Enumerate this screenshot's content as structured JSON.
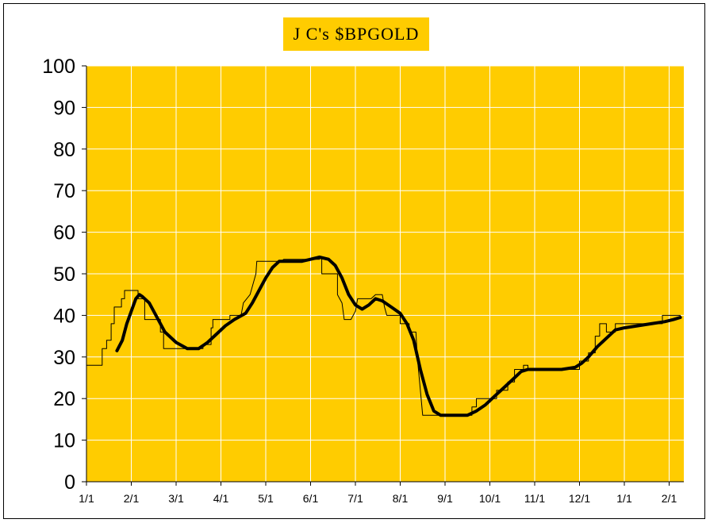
{
  "chart_data": {
    "type": "line",
    "title": "J C's $BPGOLD",
    "xlabel": "",
    "ylabel": "",
    "ylim": [
      0,
      100
    ],
    "yticks": [
      0,
      10,
      20,
      30,
      40,
      50,
      60,
      70,
      80,
      90,
      100
    ],
    "xticks": [
      "1/1",
      "2/1",
      "3/1",
      "4/1",
      "5/1",
      "6/1",
      "7/1",
      "8/1",
      "9/1",
      "10/1",
      "11/1",
      "12/1",
      "1/1",
      "2/1"
    ],
    "grid": true,
    "plot_background": "#ffcc00",
    "frame_background": "#ffffff",
    "series": [
      {
        "style": "thin step",
        "color": "#000000",
        "points": [
          [
            0,
            28
          ],
          [
            0.35,
            28
          ],
          [
            0.35,
            32
          ],
          [
            0.45,
            32
          ],
          [
            0.45,
            34
          ],
          [
            0.55,
            34
          ],
          [
            0.55,
            38
          ],
          [
            0.62,
            38
          ],
          [
            0.62,
            42
          ],
          [
            0.78,
            42
          ],
          [
            0.78,
            44
          ],
          [
            0.85,
            44
          ],
          [
            0.85,
            46
          ],
          [
            1.15,
            46
          ],
          [
            1.15,
            44
          ],
          [
            1.3,
            44
          ],
          [
            1.3,
            39
          ],
          [
            1.65,
            39
          ],
          [
            1.65,
            36
          ],
          [
            1.72,
            36
          ],
          [
            1.72,
            32
          ],
          [
            2.6,
            32
          ],
          [
            2.6,
            33
          ],
          [
            2.78,
            33
          ],
          [
            2.78,
            37
          ],
          [
            2.82,
            37
          ],
          [
            2.82,
            39
          ],
          [
            3.2,
            39
          ],
          [
            3.2,
            40
          ],
          [
            3.45,
            40
          ],
          [
            3.5,
            43
          ],
          [
            3.65,
            45
          ],
          [
            3.78,
            50
          ],
          [
            3.8,
            53
          ],
          [
            4.35,
            53
          ],
          [
            4.4,
            53.5
          ],
          [
            5.2,
            53.5
          ],
          [
            5.2,
            54
          ],
          [
            5.25,
            54
          ],
          [
            5.25,
            50
          ],
          [
            5.6,
            50
          ],
          [
            5.6,
            45
          ],
          [
            5.7,
            43
          ],
          [
            5.75,
            39
          ],
          [
            5.9,
            39
          ],
          [
            6.0,
            41
          ],
          [
            6.05,
            44
          ],
          [
            6.35,
            44
          ],
          [
            6.45,
            45
          ],
          [
            6.6,
            45
          ],
          [
            6.65,
            42
          ],
          [
            6.7,
            40
          ],
          [
            7.0,
            40
          ],
          [
            7.0,
            38
          ],
          [
            7.2,
            38
          ],
          [
            7.2,
            36
          ],
          [
            7.35,
            36
          ],
          [
            7.38,
            30
          ],
          [
            7.45,
            22
          ],
          [
            7.5,
            16
          ],
          [
            8.0,
            16
          ],
          [
            8.0,
            16
          ],
          [
            8.6,
            16
          ],
          [
            8.6,
            18
          ],
          [
            8.7,
            18
          ],
          [
            8.7,
            20
          ],
          [
            9.15,
            20
          ],
          [
            9.15,
            22
          ],
          [
            9.4,
            22
          ],
          [
            9.4,
            24
          ],
          [
            9.55,
            24
          ],
          [
            9.55,
            27
          ],
          [
            9.75,
            27
          ],
          [
            9.75,
            28
          ],
          [
            9.85,
            28
          ],
          [
            9.85,
            27
          ],
          [
            11.0,
            27
          ],
          [
            11.0,
            29
          ],
          [
            11.2,
            29
          ],
          [
            11.2,
            31
          ],
          [
            11.35,
            31
          ],
          [
            11.35,
            35
          ],
          [
            11.45,
            35
          ],
          [
            11.45,
            38
          ],
          [
            11.6,
            38
          ],
          [
            11.6,
            36
          ],
          [
            11.8,
            36
          ],
          [
            11.8,
            38
          ],
          [
            12.0,
            38
          ],
          [
            12.55,
            38
          ],
          [
            12.55,
            38
          ],
          [
            12.85,
            38
          ],
          [
            12.85,
            40
          ],
          [
            13.25,
            40
          ]
        ]
      },
      {
        "style": "thick smooth",
        "color": "#000000",
        "points": [
          [
            0.68,
            31.5
          ],
          [
            0.8,
            34
          ],
          [
            0.9,
            38
          ],
          [
            1.0,
            41
          ],
          [
            1.1,
            44
          ],
          [
            1.18,
            45
          ],
          [
            1.25,
            44.5
          ],
          [
            1.4,
            43
          ],
          [
            1.55,
            40
          ],
          [
            1.75,
            36
          ],
          [
            2.0,
            33.5
          ],
          [
            2.25,
            32
          ],
          [
            2.5,
            32
          ],
          [
            2.7,
            33.5
          ],
          [
            2.9,
            35.5
          ],
          [
            3.1,
            37.5
          ],
          [
            3.3,
            39
          ],
          [
            3.55,
            40.5
          ],
          [
            3.7,
            43
          ],
          [
            3.85,
            46
          ],
          [
            4.0,
            49
          ],
          [
            4.15,
            51.5
          ],
          [
            4.3,
            53
          ],
          [
            4.5,
            53
          ],
          [
            4.8,
            53
          ],
          [
            5.0,
            53.5
          ],
          [
            5.2,
            54
          ],
          [
            5.4,
            53.5
          ],
          [
            5.55,
            52
          ],
          [
            5.7,
            49
          ],
          [
            5.85,
            45
          ],
          [
            6.0,
            42.5
          ],
          [
            6.15,
            41.5
          ],
          [
            6.3,
            42.5
          ],
          [
            6.45,
            44
          ],
          [
            6.6,
            43.5
          ],
          [
            6.8,
            42
          ],
          [
            7.0,
            40.5
          ],
          [
            7.15,
            38
          ],
          [
            7.3,
            34
          ],
          [
            7.45,
            27
          ],
          [
            7.6,
            21
          ],
          [
            7.75,
            17
          ],
          [
            7.9,
            16
          ],
          [
            8.1,
            16
          ],
          [
            8.3,
            16
          ],
          [
            8.5,
            16
          ],
          [
            8.7,
            17
          ],
          [
            8.9,
            18.5
          ],
          [
            9.1,
            20.5
          ],
          [
            9.3,
            22.5
          ],
          [
            9.5,
            24.5
          ],
          [
            9.7,
            26.5
          ],
          [
            9.85,
            27
          ],
          [
            10.2,
            27
          ],
          [
            10.6,
            27
          ],
          [
            10.9,
            27.5
          ],
          [
            11.05,
            28.5
          ],
          [
            11.2,
            30
          ],
          [
            11.4,
            32.5
          ],
          [
            11.6,
            34.5
          ],
          [
            11.8,
            36.5
          ],
          [
            12.0,
            37
          ],
          [
            12.3,
            37.5
          ],
          [
            12.6,
            38
          ],
          [
            12.9,
            38.5
          ],
          [
            13.1,
            39
          ],
          [
            13.25,
            39.5
          ]
        ]
      }
    ]
  }
}
